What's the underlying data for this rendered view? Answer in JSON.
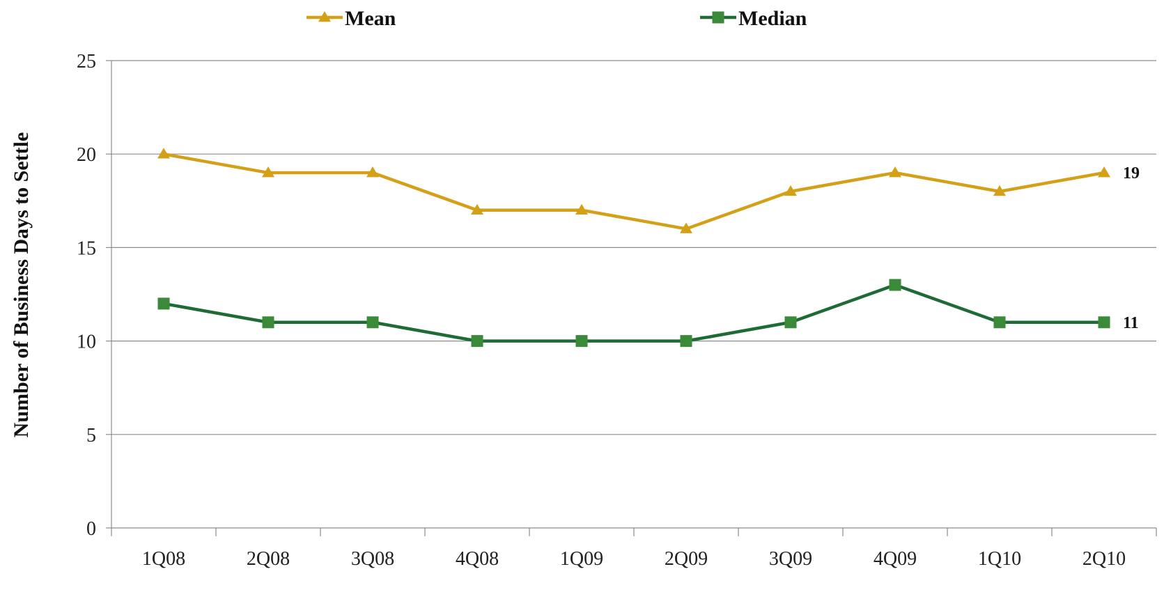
{
  "chart_data": {
    "type": "line",
    "title": "",
    "xlabel": "",
    "ylabel": "Number of  Business Days to Settle",
    "categories": [
      "1Q08",
      "2Q08",
      "3Q08",
      "4Q08",
      "1Q09",
      "2Q09",
      "3Q09",
      "4Q09",
      "1Q10",
      "2Q10"
    ],
    "yticks": [
      "0",
      "5",
      "10",
      "15",
      "20",
      "25"
    ],
    "ylim": [
      0,
      25
    ],
    "grid": true,
    "legend_position": "top",
    "series": [
      {
        "name": "Mean",
        "color": "#D4A017",
        "marker": "triangle",
        "values": [
          20,
          19,
          19,
          17,
          17,
          16,
          18,
          19,
          18,
          19
        ],
        "end_label": "19"
      },
      {
        "name": "Median",
        "color": "#1E6B35",
        "marker_color": "#3A8A3A",
        "marker": "square",
        "values": [
          12,
          11,
          11,
          10,
          10,
          10,
          11,
          13,
          11,
          11
        ],
        "end_label": "11"
      }
    ]
  }
}
